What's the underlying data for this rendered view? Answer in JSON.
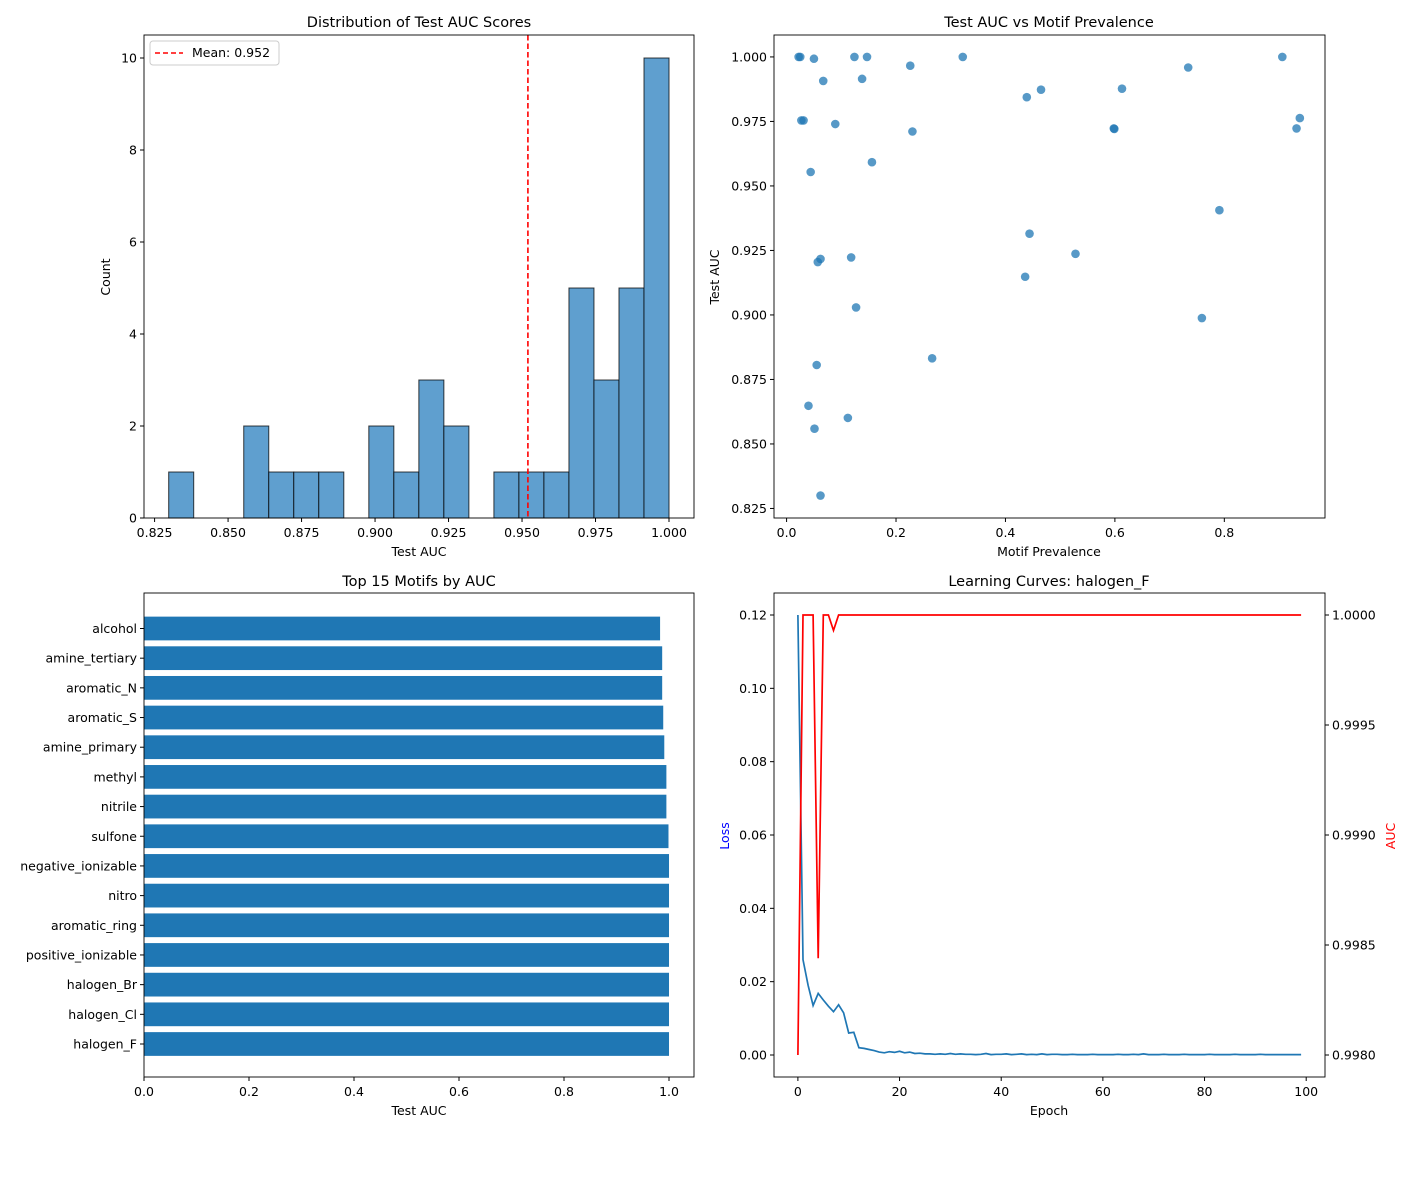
{
  "chart_data": [
    {
      "type": "bar",
      "subtype": "histogram",
      "title": "Distribution of Test AUC Scores",
      "xlabel": "Test AUC",
      "ylabel": "Count",
      "xlim": [
        0.8214,
        1.0085
      ],
      "ylim": [
        0,
        10.5
      ],
      "xticks": [
        "0.825",
        "0.850",
        "0.875",
        "0.900",
        "0.925",
        "0.950",
        "0.975",
        "1.000"
      ],
      "yticks": [
        "0",
        "2",
        "4",
        "6",
        "8",
        "10"
      ],
      "bin_start": 0.8298,
      "bin_end": 1.0,
      "counts": [
        1,
        0,
        0,
        2,
        1,
        1,
        1,
        0,
        2,
        1,
        3,
        2,
        0,
        1,
        1,
        1,
        5,
        3,
        5,
        10
      ],
      "bar_color": "#5f9fcf",
      "edge_color": "#000000",
      "mean_line": {
        "value": 0.952,
        "label": "Mean: 0.952",
        "color": "#ff0000",
        "style": "dashed"
      },
      "legend": "top-left",
      "grid": false
    },
    {
      "type": "scatter",
      "title": "Test AUC vs Motif Prevalence",
      "xlabel": "Motif Prevalence",
      "ylabel": "Test AUC",
      "xlim": [
        -0.023,
        0.984
      ],
      "ylim": [
        0.8213,
        1.0085
      ],
      "xticks": [
        "0.0",
        "0.2",
        "0.4",
        "0.6",
        "0.8"
      ],
      "yticks": [
        "0.825",
        "0.850",
        "0.875",
        "0.900",
        "0.925",
        "0.950",
        "0.975",
        "1.000"
      ],
      "color": "#1f77b4",
      "points": [
        [
          0.022,
          1.0
        ],
        [
          0.025,
          1.0
        ],
        [
          0.05,
          0.9993
        ],
        [
          0.124,
          1.0
        ],
        [
          0.147,
          1.0
        ],
        [
          0.322,
          1.0
        ],
        [
          0.906,
          1.0
        ],
        [
          0.226,
          0.9966
        ],
        [
          0.734,
          0.9959
        ],
        [
          0.067,
          0.9907
        ],
        [
          0.138,
          0.9915
        ],
        [
          0.439,
          0.9844
        ],
        [
          0.465,
          0.9873
        ],
        [
          0.613,
          0.9877
        ],
        [
          0.027,
          0.9754
        ],
        [
          0.031,
          0.9754
        ],
        [
          0.089,
          0.974
        ],
        [
          0.23,
          0.9711
        ],
        [
          0.598,
          0.9723
        ],
        [
          0.599,
          0.9721
        ],
        [
          0.938,
          0.9763
        ],
        [
          0.932,
          0.9723
        ],
        [
          0.156,
          0.9592
        ],
        [
          0.044,
          0.9554
        ],
        [
          0.791,
          0.9406
        ],
        [
          0.444,
          0.9315
        ],
        [
          0.062,
          0.9217
        ],
        [
          0.057,
          0.9205
        ],
        [
          0.118,
          0.9223
        ],
        [
          0.528,
          0.9237
        ],
        [
          0.436,
          0.9148
        ],
        [
          0.127,
          0.9029
        ],
        [
          0.759,
          0.8988
        ],
        [
          0.266,
          0.8832
        ],
        [
          0.055,
          0.8806
        ],
        [
          0.04,
          0.8648
        ],
        [
          0.112,
          0.8601
        ],
        [
          0.051,
          0.8559
        ],
        [
          0.062,
          0.83
        ]
      ],
      "grid": false
    },
    {
      "type": "bar",
      "orientation": "horizontal",
      "title": "Top 15 Motifs by AUC",
      "xlabel": "Test AUC",
      "xlim": [
        0,
        1.0476
      ],
      "xticks": [
        "0.0",
        "0.2",
        "0.4",
        "0.6",
        "0.8",
        "1.0"
      ],
      "categories": [
        "alcohol",
        "amine_tertiary",
        "aromatic_N",
        "aromatic_S",
        "amine_primary",
        "methyl",
        "nitrile",
        "sulfone",
        "negative_ionizable",
        "nitro",
        "aromatic_ring",
        "positive_ionizable",
        "halogen_Br",
        "halogen_Cl",
        "halogen_F"
      ],
      "values": [
        0.983,
        0.987,
        0.987,
        0.989,
        0.991,
        0.995,
        0.995,
        0.999,
        1.0,
        1.0,
        1.0,
        1.0,
        1.0,
        1.0,
        1.0
      ],
      "color": "#1f77b4",
      "grid": false
    },
    {
      "type": "line",
      "title": "Learning Curves: halogen_F",
      "xlabel": "Epoch",
      "ylabel": "Loss",
      "ylabel_right": "AUC",
      "xlim": [
        -4.7,
        103.7
      ],
      "ylim": [
        -0.006,
        0.126
      ],
      "ylim_right": [
        0.9979,
        1.0001
      ],
      "xticks": [
        "0",
        "20",
        "40",
        "60",
        "80",
        "100"
      ],
      "yticks": [
        "0.00",
        "0.02",
        "0.04",
        "0.06",
        "0.08",
        "0.10",
        "0.12"
      ],
      "yticks_right": [
        "0.9980",
        "0.9985",
        "0.9990",
        "0.9995",
        "1.0000"
      ],
      "series": [
        {
          "axis": "left",
          "color": "#1f77b4",
          "values": [
            0.12,
            0.026,
            0.019,
            0.0135,
            0.0168,
            0.015,
            0.0133,
            0.0118,
            0.0137,
            0.0115,
            0.006,
            0.0062,
            0.002,
            0.0018,
            0.0015,
            0.0012,
            0.0008,
            0.0006,
            0.0009,
            0.0007,
            0.001,
            0.0006,
            0.0008,
            0.0004,
            0.0005,
            0.0003,
            0.0003,
            0.0002,
            0.0003,
            0.0002,
            0.0004,
            0.0002,
            0.0003,
            0.0002,
            0.0002,
            0.0001,
            0.0002,
            0.0004,
            0.0001,
            0.0002,
            0.0002,
            0.0003,
            0.0001,
            0.0002,
            0.0003,
            0.0001,
            0.0002,
            0.0001,
            0.0003,
            0.0001,
            0.0002,
            0.0002,
            0.0001,
            0.0001,
            0.0002,
            0.0001,
            0.0001,
            0.0001,
            0.0002,
            0.0001,
            0.0001,
            0.0001,
            0.0001,
            0.0002,
            0.0001,
            0.0001,
            0.0002,
            0.0001,
            0.0003,
            0.0001,
            0.0001,
            0.0001,
            0.0002,
            0.0001,
            0.0001,
            0.0001,
            0.0002,
            0.0001,
            0.0001,
            0.0001,
            0.0001,
            0.0002,
            0.0001,
            0.0001,
            0.0001,
            0.0001,
            0.0002,
            0.0001,
            0.0001,
            0.0001,
            0.0001,
            0.0002,
            0.0001,
            0.0001,
            0.0001,
            0.0001,
            0.0001,
            0.0001,
            0.0001,
            0.0001
          ]
        },
        {
          "axis": "right",
          "color": "#ff0000",
          "values": [
            0.998,
            1,
            1,
            1,
            0.99844,
            1,
            1,
            0.99993,
            1,
            1,
            1,
            1,
            1,
            1,
            1,
            1,
            1,
            1,
            1,
            1,
            1,
            1,
            1,
            1,
            1,
            1,
            1,
            1,
            1,
            1,
            1,
            1,
            1,
            1,
            1,
            1,
            1,
            1,
            1,
            1,
            1,
            1,
            1,
            1,
            1,
            1,
            1,
            1,
            1,
            1,
            1,
            1,
            1,
            1,
            1,
            1,
            1,
            1,
            1,
            1,
            1,
            1,
            1,
            1,
            1,
            1,
            1,
            1,
            1,
            1,
            1,
            1,
            1,
            1,
            1,
            1,
            1,
            1,
            1,
            1,
            1,
            1,
            1,
            1,
            1,
            1,
            1,
            1,
            1,
            1,
            1,
            1,
            1,
            1,
            1,
            1,
            1,
            1,
            1,
            1
          ]
        }
      ],
      "grid": false
    }
  ]
}
